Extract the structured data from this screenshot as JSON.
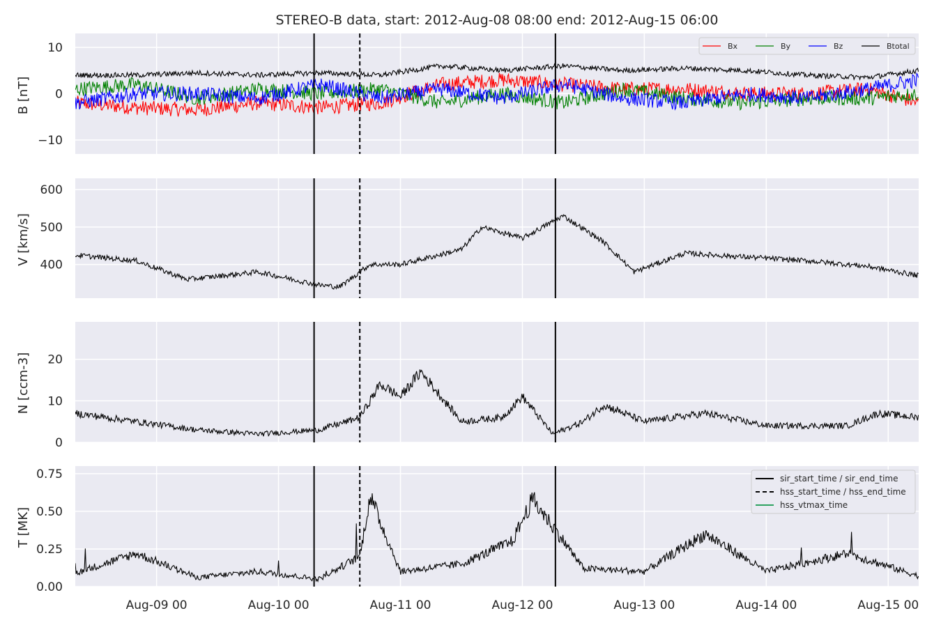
{
  "title": "STEREO-B data, start: 2012-Aug-08 08:00  end: 2012-Aug-15 06:00",
  "x_ticks": [
    "Aug-09 00",
    "Aug-10 00",
    "Aug-11 00",
    "Aug-12 00",
    "Aug-13 00",
    "Aug-14 00",
    "Aug-15 00"
  ],
  "colors": {
    "Bx": "#ff0000",
    "By": "#008000",
    "Bz": "#0000ff",
    "Btotal": "#000000",
    "hss_vtmax": "#2ca25f",
    "panel_bg": "#eaeaf2"
  },
  "legend_B": [
    "Bx",
    "By",
    "Bz",
    "Btotal"
  ],
  "legend_T": [
    "sir_start_time / sir_end_time",
    "hss_start_time / hss_end_time",
    "hss_vtmax_time"
  ],
  "chart_data": [
    {
      "type": "line",
      "ylabel": "B [nT]",
      "ylim": [
        -13,
        13
      ],
      "yticks": [
        "10",
        "0",
        "−10"
      ],
      "xlim": [
        "2012-08-08 08:00",
        "2012-08-15 06:00"
      ],
      "grid": true,
      "legend_position": "top-right",
      "x": [
        "2012-08-08 08:00",
        "2012-08-08 20:00",
        "2012-08-09 08:00",
        "2012-08-09 20:00",
        "2012-08-10 08:00",
        "2012-08-10 20:00",
        "2012-08-11 08:00",
        "2012-08-11 20:00",
        "2012-08-12 08:00",
        "2012-08-12 20:00",
        "2012-08-13 08:00",
        "2012-08-13 20:00",
        "2012-08-14 08:00",
        "2012-08-14 20:00",
        "2012-08-15 06:00"
      ],
      "series": [
        {
          "name": "Bx",
          "values": [
            -2,
            -3,
            -3.5,
            -2,
            -3,
            -2,
            2,
            3,
            2,
            1,
            1,
            0,
            0,
            1,
            -2
          ]
        },
        {
          "name": "By",
          "values": [
            1,
            2,
            -1,
            1,
            0,
            1,
            -2,
            0,
            -2,
            1,
            -1,
            -2,
            -1,
            -1,
            0
          ]
        },
        {
          "name": "Bz",
          "values": [
            -2,
            0,
            0,
            -1,
            2,
            -1,
            1,
            -1,
            2,
            -1,
            -2,
            0,
            -1,
            1,
            3
          ]
        },
        {
          "name": "Btotal",
          "values": [
            4,
            4,
            4.5,
            4,
            4.5,
            4,
            6,
            5,
            6,
            5,
            5.5,
            5,
            4,
            3.5,
            5
          ]
        }
      ]
    },
    {
      "type": "line",
      "ylabel": "V [km/s]",
      "ylim": [
        310,
        630
      ],
      "yticks": [
        "600",
        "500",
        "400"
      ],
      "grid": true,
      "x": [
        "2012-08-08 08:00",
        "2012-08-08 20:00",
        "2012-08-09 06:00",
        "2012-08-09 20:00",
        "2012-08-10 08:00",
        "2012-08-10 12:00",
        "2012-08-10 18:00",
        "2012-08-11 00:00",
        "2012-08-11 12:00",
        "2012-08-11 16:00",
        "2012-08-12 00:00",
        "2012-08-12 08:00",
        "2012-08-12 16:00",
        "2012-08-12 22:00",
        "2012-08-13 08:00",
        "2012-08-13 20:00",
        "2012-08-14 08:00",
        "2012-08-14 20:00",
        "2012-08-15 06:00"
      ],
      "series": [
        {
          "name": "",
          "values": [
            425,
            410,
            360,
            380,
            345,
            340,
            400,
            400,
            440,
            500,
            470,
            530,
            460,
            380,
            430,
            420,
            410,
            395,
            370
          ]
        }
      ]
    },
    {
      "type": "line",
      "ylabel": "N [ccm-3]",
      "ylim": [
        0,
        29
      ],
      "yticks": [
        "20",
        "10",
        "0"
      ],
      "grid": true,
      "x": [
        "2012-08-08 08:00",
        "2012-08-08 20:00",
        "2012-08-09 08:00",
        "2012-08-09 20:00",
        "2012-08-10 08:00",
        "2012-08-10 16:00",
        "2012-08-10 20:00",
        "2012-08-11 00:00",
        "2012-08-11 04:00",
        "2012-08-11 12:00",
        "2012-08-11 20:00",
        "2012-08-12 00:00",
        "2012-08-12 06:00",
        "2012-08-12 12:00",
        "2012-08-12 16:00",
        "2012-08-13 00:00",
        "2012-08-13 12:00",
        "2012-08-14 00:00",
        "2012-08-14 16:00",
        "2012-08-14 22:00",
        "2012-08-15 06:00"
      ],
      "series": [
        {
          "name": "",
          "values": [
            7,
            5,
            3,
            2,
            3,
            6,
            14,
            11,
            17,
            5,
            6,
            11,
            2,
            5,
            9,
            5,
            7,
            4,
            4,
            7,
            6
          ]
        }
      ]
    },
    {
      "type": "line",
      "ylabel": "T [MK]",
      "ylim": [
        0,
        0.8
      ],
      "yticks": [
        "0.75",
        "0.50",
        "0.25",
        "0.00"
      ],
      "grid": true,
      "legend_position": "top-right",
      "x": [
        "2012-08-08 08:00",
        "2012-08-08 20:00",
        "2012-08-09 08:00",
        "2012-08-09 20:00",
        "2012-08-10 08:00",
        "2012-08-10 16:00",
        "2012-08-10 18:00",
        "2012-08-11 00:00",
        "2012-08-11 12:00",
        "2012-08-11 22:00",
        "2012-08-12 02:00",
        "2012-08-12 06:00",
        "2012-08-12 12:00",
        "2012-08-13 00:00",
        "2012-08-13 12:00",
        "2012-08-14 00:00",
        "2012-08-14 16:00",
        "2012-08-15 06:00"
      ],
      "series": [
        {
          "name": "",
          "values": [
            0.09,
            0.22,
            0.06,
            0.1,
            0.05,
            0.2,
            0.6,
            0.1,
            0.15,
            0.3,
            0.58,
            0.4,
            0.12,
            0.1,
            0.35,
            0.1,
            0.22,
            0.07
          ]
        }
      ]
    }
  ],
  "event_lines": {
    "sir_start_time": "2012-08-10 07:00",
    "hss_start_time": "2012-08-10 16:00",
    "sir_end_time": "2012-08-12 06:30"
  }
}
